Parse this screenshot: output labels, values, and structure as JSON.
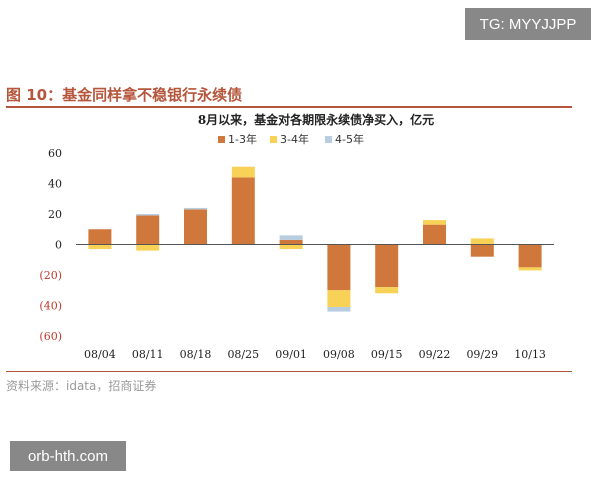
{
  "watermark_top": "TG: MYYJJPP",
  "watermark_bottom": "orb-hth.com",
  "figure_title": "图 10：基金同样拿不稳银行永续债",
  "source": "资料来源：idata，招商证券",
  "colors": {
    "s1": "#d0773b",
    "s2": "#f7d257",
    "s3": "#b9cde0",
    "accent": "#b5563c",
    "negative": "#c0392b"
  },
  "chart_data": {
    "type": "bar",
    "stacked": true,
    "title": "8月以来，基金对各期限永续债净买入，亿元",
    "xlabel": "",
    "ylabel": "",
    "ylim": [
      -60,
      60
    ],
    "yticks": [
      {
        "value": 60,
        "label": "60"
      },
      {
        "value": 40,
        "label": "40"
      },
      {
        "value": 20,
        "label": "20"
      },
      {
        "value": 0,
        "label": "0"
      },
      {
        "value": -20,
        "label": "(20)"
      },
      {
        "value": -40,
        "label": "(40)"
      },
      {
        "value": -60,
        "label": "(60)"
      }
    ],
    "grid": false,
    "legend": "top",
    "categories": [
      "08/04",
      "08/11",
      "08/18",
      "08/25",
      "09/01",
      "09/08",
      "09/15",
      "09/22",
      "09/29",
      "10/13"
    ],
    "series": [
      {
        "name": "1-3年",
        "color": "#d0773b",
        "values": [
          10,
          19,
          23,
          44,
          3,
          -30,
          -28,
          13,
          -8,
          -15
        ]
      },
      {
        "name": "3-4年",
        "color": "#f7d257",
        "values": [
          -3,
          -4,
          0,
          7,
          -3,
          -11,
          -4,
          3,
          4,
          -2
        ]
      },
      {
        "name": "4-5年",
        "color": "#b9cde0",
        "values": [
          0,
          1,
          1,
          0,
          3,
          -3,
          0,
          0,
          0,
          0
        ]
      }
    ]
  }
}
